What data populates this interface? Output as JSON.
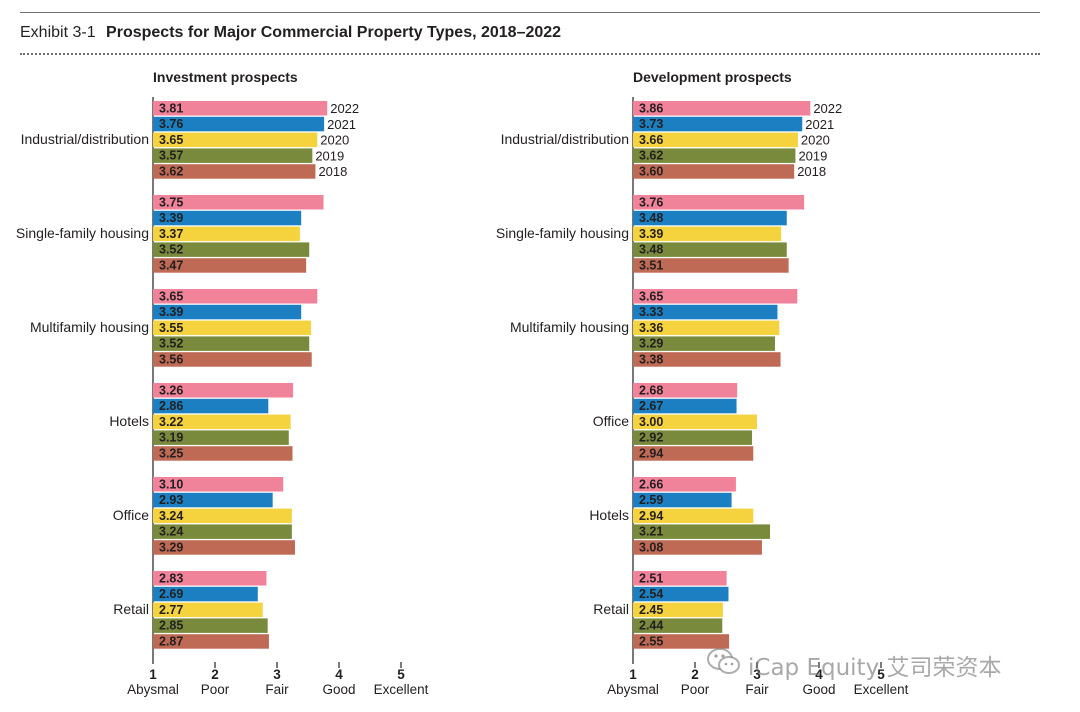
{
  "header": {
    "exhibit_label": "Exhibit 3-1",
    "title": "Prospects for Major Commercial Property Types, 2018–2022"
  },
  "watermark": {
    "text": "iCap Equity 艾司荣资本",
    "icon": "wechat-icon"
  },
  "colors": {
    "2022": "#f0829a",
    "2021": "#1b7fc1",
    "2020": "#f5d33f",
    "2019": "#7a8a3c",
    "2018": "#bf6a55"
  },
  "chart_data": [
    {
      "type": "bar",
      "orientation": "horizontal",
      "title": "Investment prospects",
      "series_order": [
        "2022",
        "2021",
        "2020",
        "2019",
        "2018"
      ],
      "year_labels_on_first_group": true,
      "categories": [
        "Industrial/distribution",
        "Single-family housing",
        "Multifamily housing",
        "Hotels",
        "Office",
        "Retail"
      ],
      "series": [
        {
          "name": "2022",
          "values": [
            3.81,
            3.75,
            3.65,
            3.26,
            3.1,
            2.83
          ]
        },
        {
          "name": "2021",
          "values": [
            3.76,
            3.39,
            3.39,
            2.86,
            2.93,
            2.69
          ]
        },
        {
          "name": "2020",
          "values": [
            3.65,
            3.37,
            3.55,
            3.22,
            3.24,
            2.77
          ]
        },
        {
          "name": "2019",
          "values": [
            3.57,
            3.52,
            3.52,
            3.19,
            3.24,
            2.85
          ]
        },
        {
          "name": "2018",
          "values": [
            3.62,
            3.47,
            3.56,
            3.25,
            3.29,
            2.87
          ]
        }
      ],
      "xlim": [
        1,
        5
      ],
      "x_ticks": [
        {
          "value": 1,
          "number": "1",
          "word": "Abysmal"
        },
        {
          "value": 2,
          "number": "2",
          "word": "Poor"
        },
        {
          "value": 3,
          "number": "3",
          "word": "Fair"
        },
        {
          "value": 4,
          "number": "4",
          "word": "Good"
        },
        {
          "value": 5,
          "number": "5",
          "word": "Excellent"
        }
      ]
    },
    {
      "type": "bar",
      "orientation": "horizontal",
      "title": "Development prospects",
      "series_order": [
        "2022",
        "2021",
        "2020",
        "2019",
        "2018"
      ],
      "year_labels_on_first_group": true,
      "categories": [
        "Industrial/distribution",
        "Single-family housing",
        "Multifamily housing",
        "Office",
        "Hotels",
        "Retail"
      ],
      "series": [
        {
          "name": "2022",
          "values": [
            3.86,
            3.76,
            3.65,
            2.68,
            2.66,
            2.51
          ]
        },
        {
          "name": "2021",
          "values": [
            3.73,
            3.48,
            3.33,
            2.67,
            2.59,
            2.54
          ]
        },
        {
          "name": "2020",
          "values": [
            3.66,
            3.39,
            3.36,
            3.0,
            2.94,
            2.45
          ]
        },
        {
          "name": "2019",
          "values": [
            3.62,
            3.48,
            3.29,
            2.92,
            3.21,
            2.44
          ]
        },
        {
          "name": "2018",
          "values": [
            3.6,
            3.51,
            3.38,
            2.94,
            3.08,
            2.55
          ]
        }
      ],
      "xlim": [
        1,
        5
      ],
      "x_ticks": [
        {
          "value": 1,
          "number": "1",
          "word": "Abysmal"
        },
        {
          "value": 2,
          "number": "2",
          "word": "Poor"
        },
        {
          "value": 3,
          "number": "3",
          "word": "Fair"
        },
        {
          "value": 4,
          "number": "4",
          "word": "Good"
        },
        {
          "value": 5,
          "number": "5",
          "word": "Excellent"
        }
      ]
    }
  ]
}
